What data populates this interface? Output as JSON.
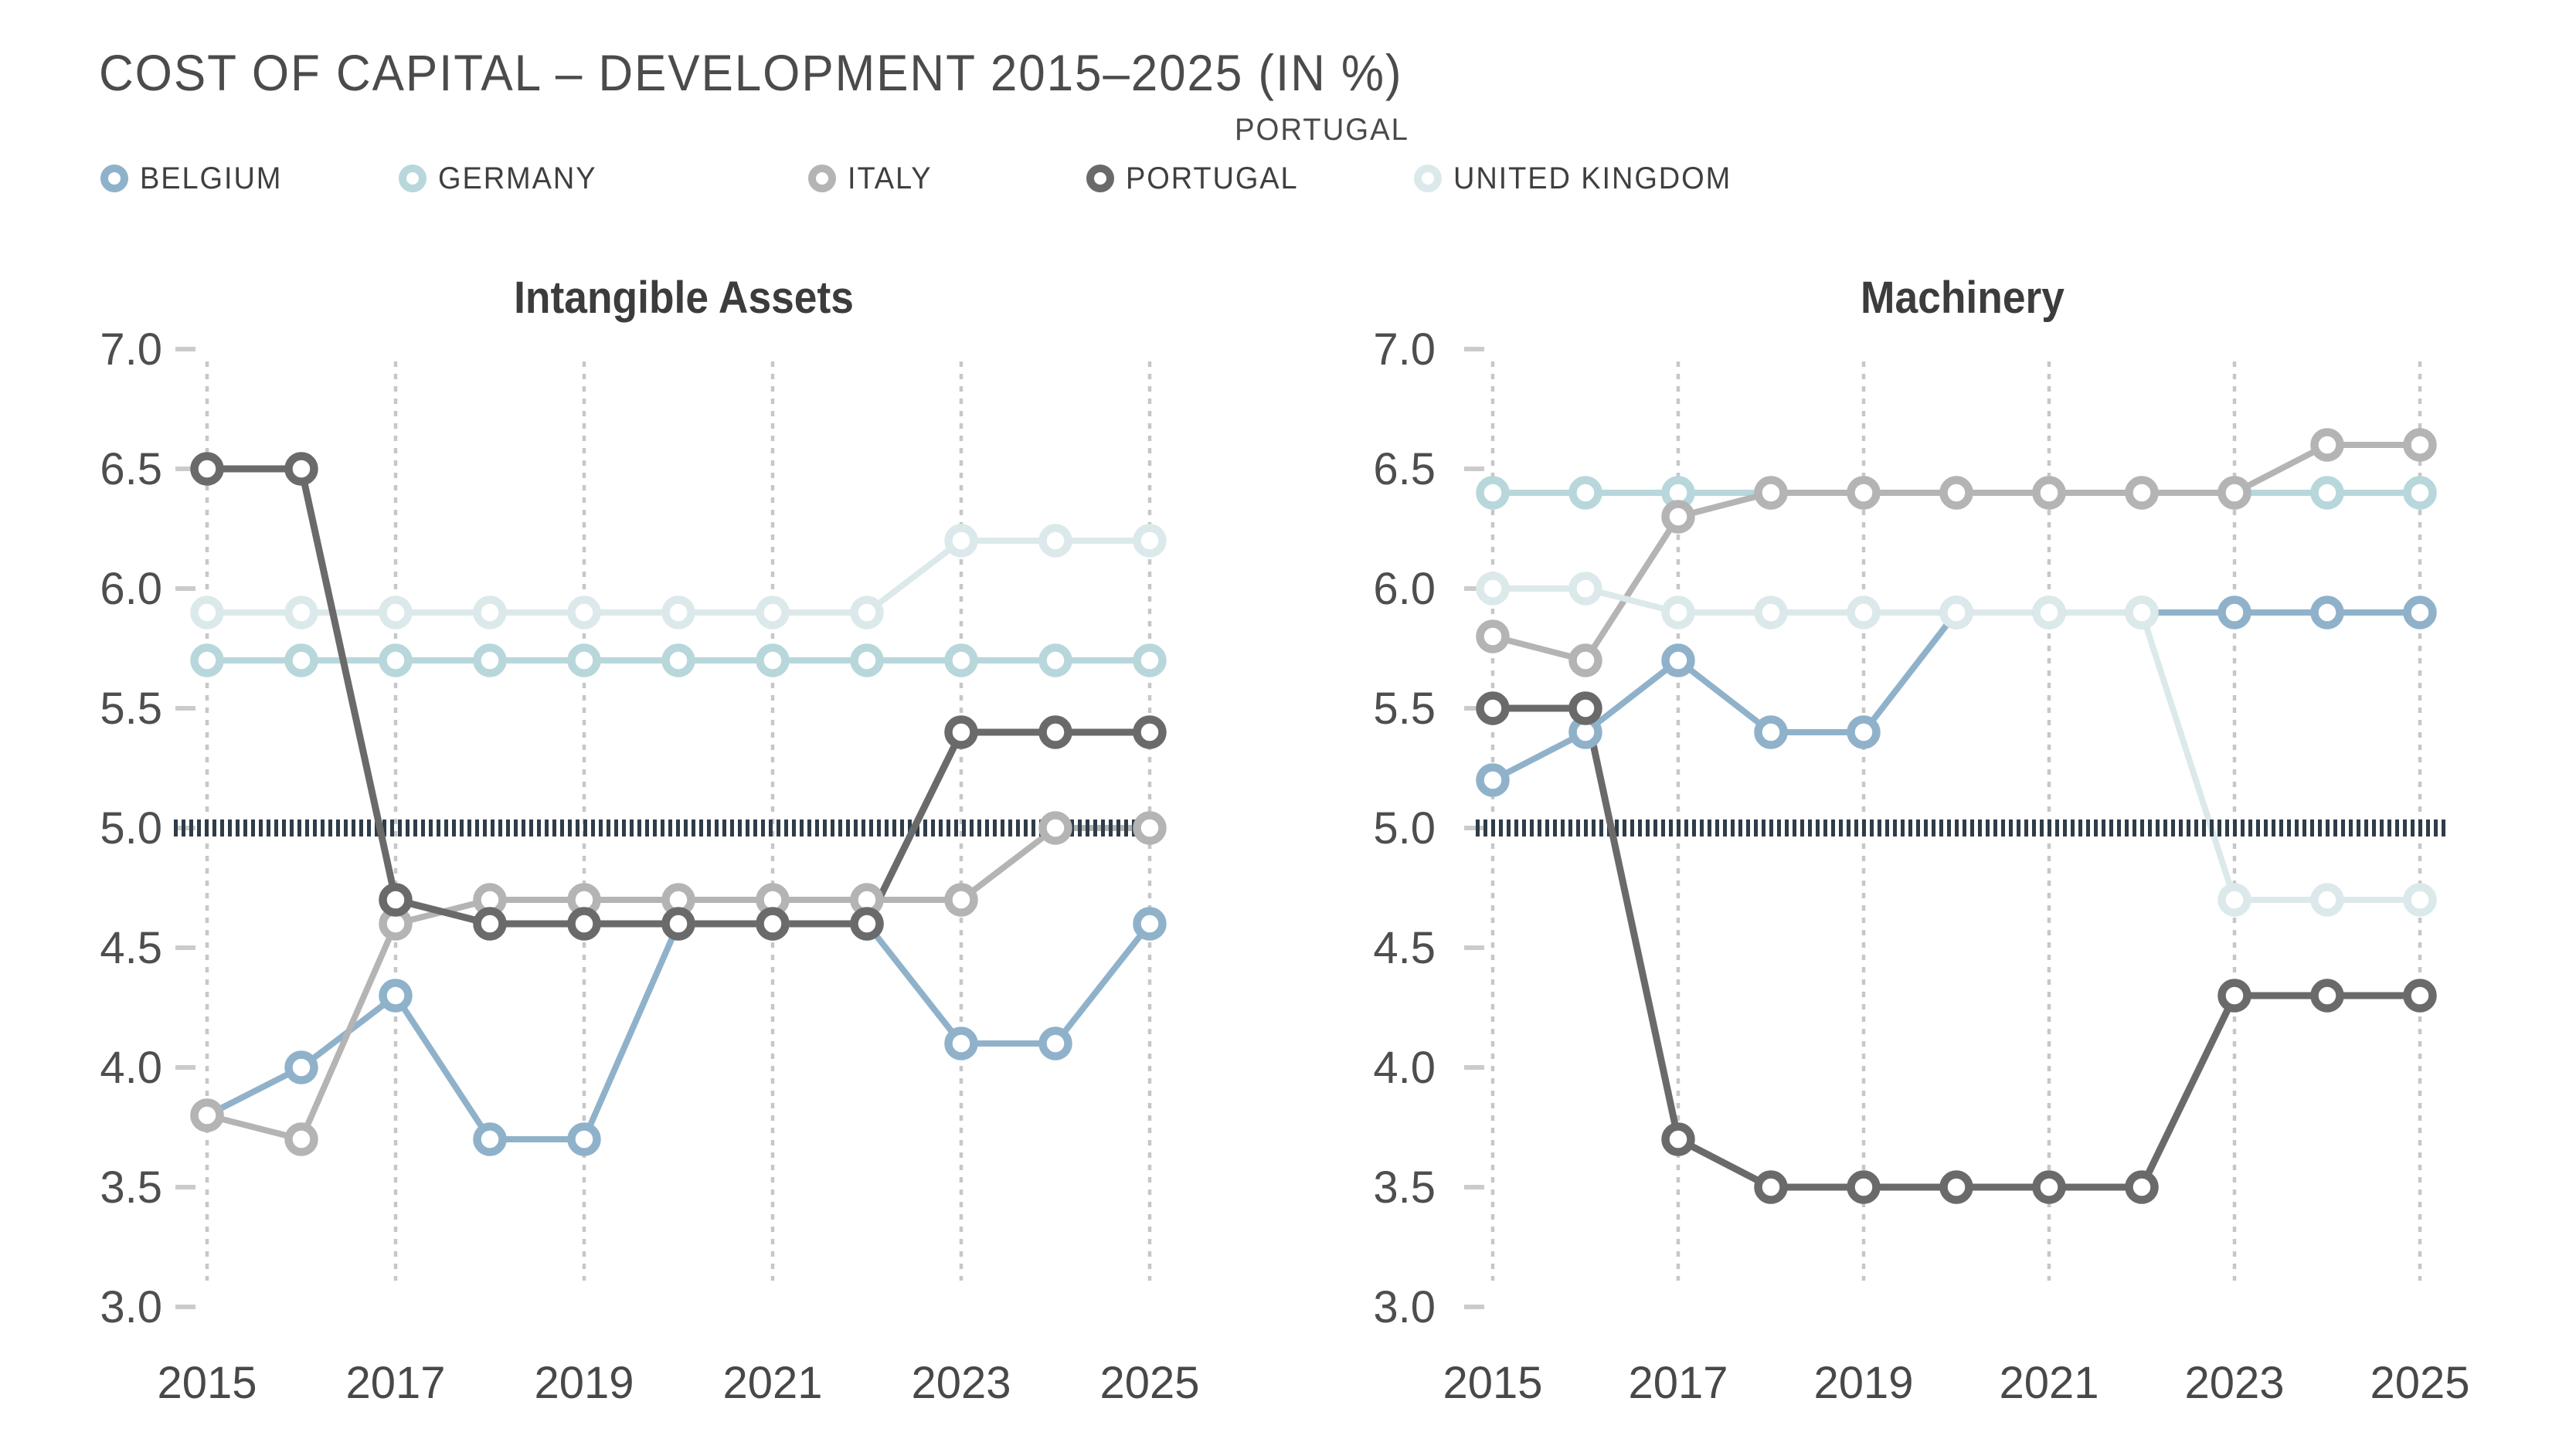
{
  "title": "COST OF CAPITAL – DEVELOPMENT 2015–2025 (IN %)",
  "tooltip_label": "PORTUGAL",
  "colors": {
    "background": "#ffffff",
    "title_text": "#4b4b4b",
    "chart_title_text": "#3c3c3c",
    "axis_text": "#4e4e4e",
    "year_text": "#484848",
    "legend_text": "#3f3f3f",
    "gridline": "#c7c7c7",
    "tick": "#cbcbcb",
    "reference_line": "#2f3c49",
    "belgium": "#8fb2ca",
    "germany": "#b7d7db",
    "italy": "#b4b4b4",
    "portugal": "#6a6a6a",
    "united_kingdom": "#dce9eb"
  },
  "legend": [
    {
      "label": "BELGIUM",
      "series": "Belgium",
      "color": "#8fb2ca"
    },
    {
      "label": "GERMANY",
      "series": "Germany",
      "color": "#b7d7db"
    },
    {
      "label": "ITALY",
      "series": "Italy",
      "color": "#b4b4b4"
    },
    {
      "label": "PORTUGAL",
      "series": "Portugal",
      "color": "#6a6a6a"
    },
    {
      "label": "UNITED KINGDOM",
      "series": "United Kingdom",
      "color": "#dce9eb"
    }
  ],
  "chart_data": [
    {
      "type": "line",
      "title": "Intangible Assets",
      "xlabel": "",
      "ylabel": "",
      "x": [
        2015,
        2016,
        2017,
        2018,
        2019,
        2020,
        2021,
        2022,
        2023,
        2024,
        2025
      ],
      "xticks": [
        2015,
        2017,
        2019,
        2021,
        2023,
        2025
      ],
      "ylim": [
        3.0,
        7.0
      ],
      "yticks": [
        3.0,
        3.5,
        4.0,
        4.5,
        5.0,
        5.5,
        6.0,
        6.5,
        7.0
      ],
      "reference_line": 5.0,
      "grid": "vertical dashed gridlines at odd years",
      "legend_position": "top",
      "series": [
        {
          "name": "Belgium",
          "color": "#8fb2ca",
          "values": [
            3.8,
            4.0,
            4.3,
            3.7,
            3.7,
            4.6,
            4.6,
            4.6,
            4.1,
            4.1,
            4.6
          ]
        },
        {
          "name": "Germany",
          "color": "#b7d7db",
          "values": [
            5.7,
            5.7,
            5.7,
            5.7,
            5.7,
            5.7,
            5.7,
            5.7,
            5.7,
            5.7,
            5.7
          ]
        },
        {
          "name": "Italy",
          "color": "#b4b4b4",
          "values": [
            3.8,
            3.7,
            4.6,
            4.7,
            4.7,
            4.7,
            4.7,
            4.7,
            4.7,
            5.0,
            5.0
          ]
        },
        {
          "name": "United Kingdom",
          "color": "#dce9eb",
          "values": [
            5.9,
            5.9,
            5.9,
            5.9,
            5.9,
            5.9,
            5.9,
            5.9,
            6.2,
            6.2,
            6.2
          ]
        },
        {
          "name": "Portugal",
          "color": "#6a6a6a",
          "values": [
            6.5,
            6.5,
            4.7,
            4.6,
            4.6,
            4.6,
            4.6,
            4.6,
            5.4,
            5.4,
            5.4
          ],
          "drawn_above_reference": true
        }
      ]
    },
    {
      "type": "line",
      "title": "Machinery",
      "xlabel": "",
      "ylabel": "",
      "x": [
        2015,
        2016,
        2017,
        2018,
        2019,
        2020,
        2021,
        2022,
        2023,
        2024,
        2025
      ],
      "xticks": [
        2015,
        2017,
        2019,
        2021,
        2023,
        2025
      ],
      "ylim": [
        3.0,
        7.0
      ],
      "yticks": [
        3.0,
        3.5,
        4.0,
        4.5,
        5.0,
        5.5,
        6.0,
        6.5,
        7.0
      ],
      "reference_line": 5.0,
      "grid": "vertical dashed gridlines at odd years",
      "legend_position": "top",
      "series": [
        {
          "name": "Belgium",
          "color": "#8fb2ca",
          "values": [
            5.2,
            5.4,
            5.7,
            5.4,
            5.4,
            5.9,
            5.9,
            5.9,
            5.9,
            5.9,
            5.9
          ]
        },
        {
          "name": "Germany",
          "color": "#b7d7db",
          "values": [
            6.4,
            6.4,
            6.4,
            6.4,
            6.4,
            6.4,
            6.4,
            6.4,
            6.4,
            6.4,
            6.4
          ]
        },
        {
          "name": "Italy",
          "color": "#b4b4b4",
          "values": [
            5.8,
            5.7,
            6.3,
            6.4,
            6.4,
            6.4,
            6.4,
            6.4,
            6.4,
            6.6,
            6.6
          ]
        },
        {
          "name": "United Kingdom",
          "color": "#dce9eb",
          "values": [
            6.0,
            6.0,
            5.9,
            5.9,
            5.9,
            5.9,
            5.9,
            5.9,
            4.7,
            4.7,
            4.7
          ]
        },
        {
          "name": "Portugal",
          "color": "#6a6a6a",
          "values": [
            5.5,
            5.5,
            3.7,
            3.5,
            3.5,
            3.5,
            3.5,
            3.5,
            4.3,
            4.3,
            4.3
          ],
          "drawn_above_reference": true
        }
      ]
    }
  ]
}
